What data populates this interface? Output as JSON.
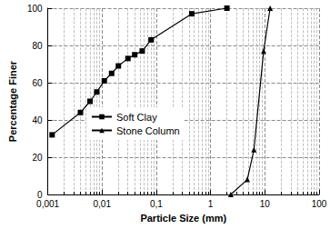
{
  "chart_data": {
    "type": "line",
    "x_label": "Particle Size (mm)",
    "y_label": "Percentage Finer",
    "log": "x",
    "grid": true,
    "legend": "left",
    "xlim": [
      0.001,
      100
    ],
    "xticks": [
      {
        "value": 0.001,
        "label": "0,001"
      },
      {
        "value": 0.01,
        "label": "0,01"
      },
      {
        "value": 0.1,
        "label": "0,1"
      },
      1,
      10,
      100
    ],
    "ylim": [
      0,
      100
    ],
    "yticks": [
      0,
      20,
      40,
      60,
      80,
      100
    ],
    "series": [
      {
        "name": "Soft Clay",
        "color": "#000000",
        "marker": "square",
        "x": [
          0.0012,
          0.004,
          0.006,
          0.008,
          0.011,
          0.015,
          0.02,
          0.03,
          0.04,
          0.055,
          0.08,
          0.45,
          2
        ],
        "values": [
          32,
          44,
          50,
          55,
          61,
          65,
          69,
          73,
          75,
          77,
          83,
          97,
          100
        ]
      },
      {
        "name": "Stone Column",
        "color": "#000000",
        "marker": "triangle",
        "x": [
          2.36,
          4.75,
          6.3,
          9.5,
          12.5
        ],
        "values": [
          0,
          8,
          24,
          77,
          100
        ]
      }
    ]
  }
}
